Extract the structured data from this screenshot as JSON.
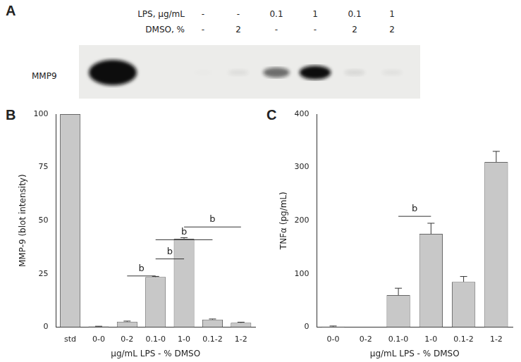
{
  "blot": {
    "panel": "A",
    "row_labels": [
      "LPS, μg/mL",
      "DMSO, %"
    ],
    "band_label": "MMP9",
    "lanes": [
      {
        "LPS": null,
        "DMSO": null
      },
      {
        "LPS": "-",
        "DMSO": "-"
      },
      {
        "LPS": "-",
        "DMSO": "2"
      },
      {
        "LPS": "0.1",
        "DMSO": "-"
      },
      {
        "LPS": "1",
        "DMSO": "-"
      },
      {
        "LPS": "0.1",
        "DMSO": "2"
      },
      {
        "LPS": "1",
        "DMSO": "2"
      }
    ]
  },
  "chart_data": [
    {
      "panel": "B",
      "type": "bar",
      "categories": [
        "std",
        "0-0",
        "0-2",
        "0.1-0",
        "1-0",
        "0.1-2",
        "1-2"
      ],
      "values": [
        100,
        0.3,
        2.5,
        23.5,
        41.5,
        3.5,
        2
      ],
      "errors": [
        0,
        0.1,
        0.3,
        0.3,
        0.5,
        0.3,
        0.3
      ],
      "color": "#c8c8c8",
      "y_label": "MMP-9 (blot intensity)",
      "x_label": "μg/mL LPS - % DMSO",
      "ylim": [
        0,
        100
      ],
      "yticks": [
        0,
        25,
        50,
        75,
        100
      ],
      "grid": false,
      "significance": [
        {
          "from": "0-2",
          "to": "0.1-0",
          "label": "b",
          "y": 24
        },
        {
          "from": "0.1-0",
          "to": "1-0",
          "label": "b",
          "y": 32
        },
        {
          "from": "0.1-0",
          "to": "0.1-2",
          "label": "b",
          "y": 41
        },
        {
          "from": "1-0",
          "to": "1-2",
          "label": "b",
          "y": 47
        }
      ]
    },
    {
      "panel": "C",
      "type": "bar",
      "categories": [
        "0-0",
        "0-2",
        "0.1-0",
        "1-0",
        "0.1-2",
        "1-2"
      ],
      "values": [
        1,
        0,
        60,
        175,
        85,
        310
      ],
      "errors": [
        1,
        0,
        13,
        20,
        10,
        20
      ],
      "color": "#c8c8c8",
      "y_label": "TNFα (pg/mL)",
      "x_label": "μg/mL LPS - % DMSO",
      "ylim": [
        0,
        400
      ],
      "yticks": [
        0,
        100,
        200,
        300,
        400
      ],
      "grid": false,
      "significance": [
        {
          "from": "0.1-0",
          "to": "1-0",
          "label": "b",
          "y": 208
        }
      ]
    }
  ]
}
